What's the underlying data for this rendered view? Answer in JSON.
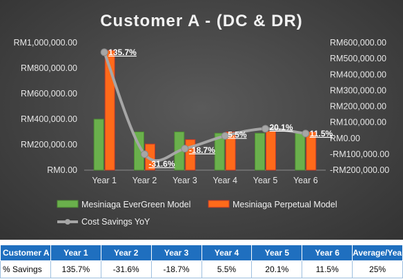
{
  "chart_data": {
    "type": "bar",
    "title": "Customer A - (DC & DR)",
    "categories": [
      "Year 1",
      "Year 2",
      "Year 3",
      "Year 4",
      "Year 5",
      "Year 6"
    ],
    "series": [
      {
        "name": "Mesiniaga EverGreen Model",
        "kind": "bar",
        "axis": "left",
        "color": "#6ab04c",
        "values": [
          400000,
          300000,
          300000,
          290000,
          290000,
          290000
        ]
      },
      {
        "name": "Mesiniaga Perpetual Model",
        "kind": "bar",
        "axis": "left",
        "color": "#ff6a1a",
        "values": [
          940000,
          205000,
          240000,
          300000,
          305000,
          300000
        ]
      },
      {
        "name": "Cost Savings YoY",
        "kind": "line",
        "axis": "right",
        "color": "#a6a6a6",
        "values": [
          540000,
          -100000,
          -65000,
          15000,
          60000,
          30000
        ],
        "labels": [
          "135.7%",
          "-31.6%",
          "-18.7%",
          "5.5%",
          "20.1%",
          "11.5%"
        ]
      }
    ],
    "y_left": {
      "ylim": [
        0,
        1000000
      ],
      "ticks": [
        0,
        200000,
        400000,
        600000,
        800000,
        1000000
      ],
      "tick_labels": [
        "RM0.00",
        "RM200,000.00",
        "RM400,000.00",
        "RM600,000.00",
        "RM800,000.00",
        "RM1,000,000.00"
      ]
    },
    "y_right": {
      "ylim": [
        -200000,
        600000
      ],
      "ticks": [
        -200000,
        -100000,
        0,
        100000,
        200000,
        300000,
        400000,
        500000,
        600000
      ],
      "tick_labels": [
        "-RM200,000.00",
        "-RM100,000.00",
        "RM0.00",
        "RM100,000.00",
        "RM200,000.00",
        "RM300,000.00",
        "RM400,000.00",
        "RM500,000.00",
        "RM600,000.00"
      ]
    },
    "grid": false,
    "legend_placement": "bottom"
  },
  "table": {
    "headers": [
      "Customer A",
      "Year 1",
      "Year 2",
      "Year 3",
      "Year 4",
      "Year 5",
      "Year 6",
      "Average/Year"
    ],
    "row_label": "% Savings",
    "values": [
      "135.7%",
      "-31.6%",
      "-18.7%",
      "5.5%",
      "20.1%",
      "11.5%",
      "25%"
    ]
  }
}
